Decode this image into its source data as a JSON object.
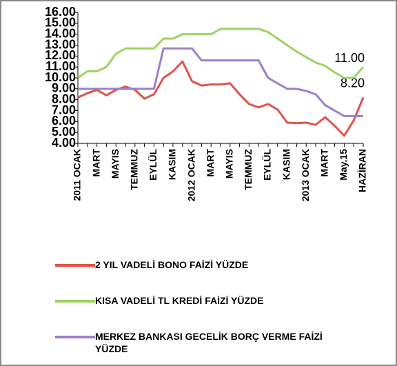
{
  "chart_data": {
    "type": "line",
    "categories": [
      "2011 OCAK",
      null,
      "MART",
      null,
      "MAYIS",
      null,
      "TEMMUZ",
      null,
      "EYLÜL",
      null,
      "KASIM",
      null,
      "2012 OCAK",
      null,
      "MART",
      null,
      "MAYIS",
      null,
      "TEMMUZ",
      null,
      "EYLÜL",
      null,
      "KASIM",
      null,
      "2013 OCAK",
      null,
      "MART",
      null,
      "May.15",
      null,
      "HAZİRAN"
    ],
    "series": [
      {
        "name": "2 YIL VADELİ BONO FAİZİ YÜZDE",
        "color": "#e0524a",
        "values": [
          8.2,
          8.6,
          8.9,
          8.4,
          8.9,
          9.2,
          8.9,
          8.1,
          8.5,
          10.0,
          10.6,
          11.5,
          9.7,
          9.3,
          9.4,
          9.4,
          9.5,
          8.5,
          7.6,
          7.3,
          7.6,
          7.1,
          5.9,
          5.85,
          5.9,
          5.7,
          6.4,
          5.6,
          4.7,
          6.1,
          8.2
        ],
        "value_labels": [
          null,
          null,
          null,
          null,
          null,
          null,
          null,
          null,
          null,
          null,
          null,
          null,
          null,
          null,
          null,
          null,
          null,
          null,
          null,
          null,
          null,
          null,
          null,
          null,
          null,
          null,
          null,
          null,
          null,
          null,
          "8.20"
        ]
      },
      {
        "name": "KISA VADELİ TL KREDİ FAİZİ YÜZDE",
        "color": "#9ed264",
        "values": [
          10.0,
          10.6,
          10.6,
          11.0,
          12.2,
          12.7,
          12.7,
          12.7,
          12.7,
          13.6,
          13.6,
          14.0,
          14.0,
          14.0,
          14.0,
          14.5,
          14.5,
          14.5,
          14.5,
          14.5,
          14.2,
          13.6,
          13.0,
          12.4,
          11.9,
          11.4,
          11.1,
          10.5,
          10.0,
          10.0,
          11.0
        ],
        "value_labels": [
          null,
          null,
          null,
          null,
          null,
          null,
          null,
          null,
          null,
          null,
          null,
          null,
          null,
          null,
          null,
          null,
          null,
          null,
          null,
          null,
          null,
          null,
          null,
          null,
          null,
          null,
          null,
          null,
          null,
          null,
          "11.00"
        ]
      },
      {
        "name": "MERKEZ BANKASI GECELİK BORÇ VERME FAİZİ YÜZDE",
        "color": "#9b7fcc",
        "values": [
          9,
          9,
          9,
          9,
          9,
          9,
          9,
          9,
          9,
          12.7,
          12.7,
          12.7,
          12.7,
          11.6,
          11.6,
          11.6,
          11.6,
          11.6,
          11.6,
          11.6,
          10.0,
          9.5,
          9.0,
          9.0,
          8.8,
          8.5,
          7.5,
          7.0,
          6.5,
          6.5,
          6.5
        ]
      }
    ],
    "ylim": [
      4,
      16
    ],
    "yticks": [
      {
        "value": 4,
        "label": "4.00"
      },
      {
        "value": 5,
        "label": "5.00"
      },
      {
        "value": 6,
        "label": "6.00"
      },
      {
        "value": 7,
        "label": "7.00"
      },
      {
        "value": 8,
        "label": "8.00"
      },
      {
        "value": 9,
        "label": "9.00"
      },
      {
        "value": 10,
        "label": "10.00"
      },
      {
        "value": 11,
        "label": "11.00"
      },
      {
        "value": 12,
        "label": "12.00"
      },
      {
        "value": 13,
        "label": "13.00"
      },
      {
        "value": 14,
        "label": "14.00"
      },
      {
        "value": 15,
        "label": "15.00"
      },
      {
        "value": 16,
        "label": "16.00"
      }
    ],
    "grid": false,
    "legend": "bottom"
  }
}
